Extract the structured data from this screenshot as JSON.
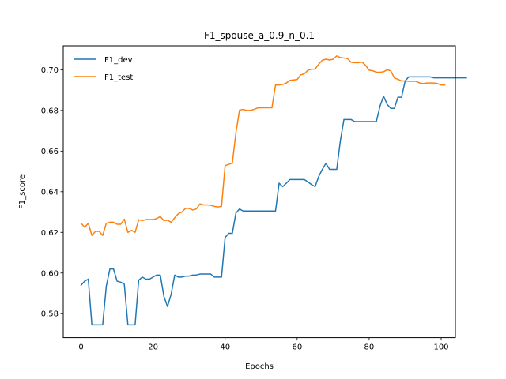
{
  "chart_data": {
    "type": "line",
    "title": "F1_spouse_a_0.9_n_0.1",
    "xlabel": "Epochs",
    "ylabel": "F1_score",
    "xlim": [
      -4.95,
      103.95
    ],
    "ylim": [
      0.5682,
      0.7118
    ],
    "xticks": [
      0,
      20,
      40,
      60,
      80,
      100
    ],
    "yticks": [
      0.58,
      0.6,
      0.62,
      0.64,
      0.66,
      0.68,
      0.7
    ],
    "ytick_labels": [
      "0.58",
      "0.60",
      "0.62",
      "0.64",
      "0.66",
      "0.68",
      "0.70"
    ],
    "grid": false,
    "legend": "upper-left",
    "series": [
      {
        "name": "F1_dev",
        "color": "#1f77b4",
        "values": [
          0.594,
          0.596,
          0.597,
          0.5745,
          0.5745,
          0.5745,
          0.5745,
          0.5935,
          0.602,
          0.602,
          0.596,
          0.5955,
          0.5945,
          0.5745,
          0.5745,
          0.5745,
          0.5965,
          0.598,
          0.597,
          0.597,
          0.598,
          0.599,
          0.599,
          0.5885,
          0.5835,
          0.5895,
          0.599,
          0.598,
          0.598,
          0.5985,
          0.5985,
          0.599,
          0.599,
          0.5995,
          0.5995,
          0.5995,
          0.5995,
          0.598,
          0.598,
          0.598,
          0.6175,
          0.6195,
          0.6195,
          0.6295,
          0.6315,
          0.6305,
          0.6305,
          0.6305,
          0.6305,
          0.6305,
          0.6305,
          0.6305,
          0.6305,
          0.6305,
          0.6305,
          0.6442,
          0.6425,
          0.6442,
          0.646,
          0.646,
          0.646,
          0.646,
          0.646,
          0.6448,
          0.6435,
          0.6425,
          0.6475,
          0.651,
          0.654,
          0.651,
          0.651,
          0.651,
          0.665,
          0.6755,
          0.6755,
          0.6755,
          0.6745,
          0.6745,
          0.6745,
          0.6745,
          0.6745,
          0.6745,
          0.6745,
          0.682,
          0.687,
          0.683,
          0.681,
          0.681,
          0.6865,
          0.6865,
          0.6945,
          0.6965,
          0.6965,
          0.6965,
          0.6965,
          0.6965,
          0.6965,
          0.6965,
          0.696,
          0.696,
          0.696,
          0.696,
          0.696,
          0.696,
          0.696,
          0.696,
          0.696,
          0.696
        ]
      },
      {
        "name": "F1_test",
        "color": "#ff7f0e",
        "values": [
          0.6245,
          0.6225,
          0.6245,
          0.6185,
          0.6205,
          0.6205,
          0.6185,
          0.6245,
          0.625,
          0.625,
          0.624,
          0.624,
          0.6265,
          0.62,
          0.621,
          0.62,
          0.6262,
          0.6258,
          0.6263,
          0.6263,
          0.6263,
          0.6268,
          0.6278,
          0.6258,
          0.626,
          0.625,
          0.6272,
          0.6292,
          0.63,
          0.6318,
          0.6318,
          0.631,
          0.6315,
          0.634,
          0.6335,
          0.6335,
          0.6333,
          0.6328,
          0.6325,
          0.6328,
          0.6528,
          0.6535,
          0.654,
          0.669,
          0.6802,
          0.6805,
          0.68,
          0.68,
          0.6805,
          0.6812,
          0.6813,
          0.6813,
          0.6813,
          0.6813,
          0.6925,
          0.6925,
          0.6928,
          0.6935,
          0.6948,
          0.695,
          0.6952,
          0.6975,
          0.698,
          0.6998,
          0.7003,
          0.7003,
          0.7028,
          0.7047,
          0.7052,
          0.7048,
          0.7052,
          0.7068,
          0.706,
          0.7058,
          0.7055,
          0.7037,
          0.7035,
          0.7035,
          0.7038,
          0.7022,
          0.6998,
          0.6995,
          0.6988,
          0.6988,
          0.699,
          0.7,
          0.6995,
          0.696,
          0.6953,
          0.6945,
          0.6945,
          0.6943,
          0.6943,
          0.6943,
          0.6935,
          0.6932,
          0.6935,
          0.6935,
          0.6935,
          0.6932,
          0.6925,
          0.6925
        ]
      }
    ]
  }
}
